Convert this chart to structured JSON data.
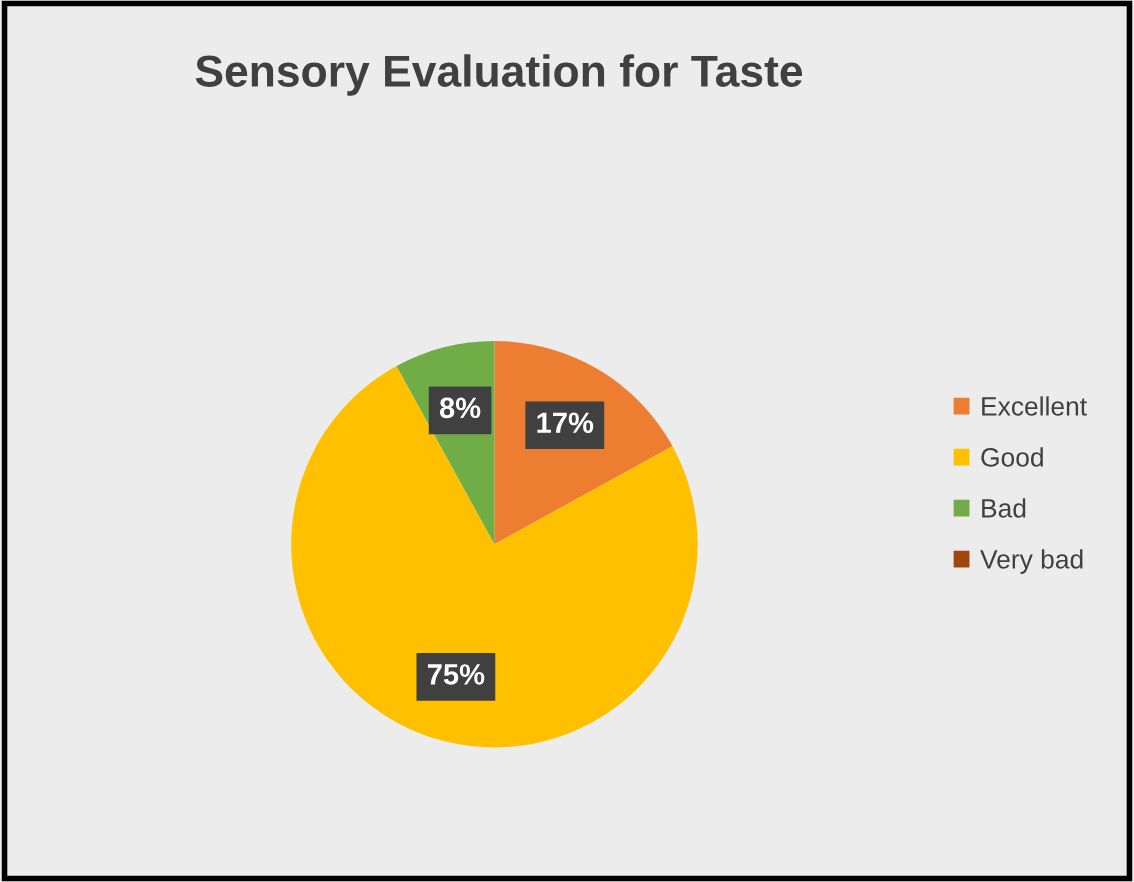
{
  "chart_data": {
    "type": "pie",
    "title": "Sensory Evaluation for Taste",
    "categories": [
      "Excellent",
      "Good",
      "Bad",
      "Very bad"
    ],
    "values": [
      17,
      75,
      8,
      0
    ],
    "colors": [
      "#ed7d31",
      "#ffc000",
      "#70ad47",
      "#9e480e"
    ],
    "value_labels": [
      "17%",
      "75%",
      "8%",
      null
    ],
    "legend": "right"
  }
}
